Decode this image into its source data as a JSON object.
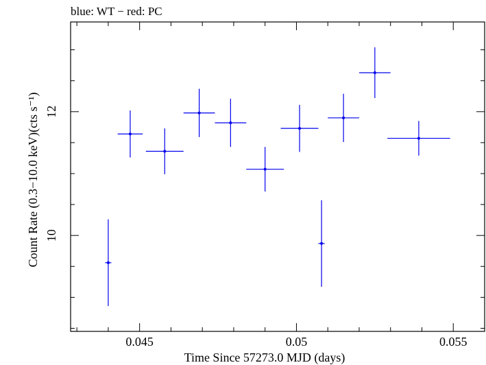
{
  "chart_data": {
    "type": "scatter",
    "title": "blue: WT − red: PC",
    "xlabel": "Time Since 57273.0 MJD (days)",
    "ylabel": "Count Rate (0.3−10.0 keV)(cts s⁻¹)",
    "xlim": [
      0.0428,
      0.056
    ],
    "ylim": [
      8.45,
      13.45
    ],
    "x_major_ticks": [
      0.045,
      0.05,
      0.055
    ],
    "x_tick_labels": [
      "0.045",
      "0.05",
      "0.055"
    ],
    "y_major_ticks": [
      10,
      12
    ],
    "y_tick_labels": [
      "10",
      "12"
    ],
    "grid": false,
    "series": [
      {
        "color": "#0000ee",
        "points": [
          {
            "x": 0.044,
            "xerr": 0.0001,
            "y": 9.56,
            "yerr": 0.7
          },
          {
            "x": 0.0447,
            "xerr": 0.0004,
            "y": 11.64,
            "yerr": 0.38
          },
          {
            "x": 0.0458,
            "xerr": 0.0006,
            "y": 11.36,
            "yerr": 0.37
          },
          {
            "x": 0.0469,
            "xerr": 0.0005,
            "y": 11.98,
            "yerr": 0.39
          },
          {
            "x": 0.0479,
            "xerr": 0.0005,
            "y": 11.82,
            "yerr": 0.39
          },
          {
            "x": 0.049,
            "xerr": 0.0006,
            "y": 11.07,
            "yerr": 0.36
          },
          {
            "x": 0.0501,
            "xerr": 0.0006,
            "y": 11.73,
            "yerr": 0.38
          },
          {
            "x": 0.0508,
            "xerr": 0.0001,
            "y": 9.87,
            "yerr": 0.7
          },
          {
            "x": 0.0515,
            "xerr": 0.0005,
            "y": 11.9,
            "yerr": 0.39
          },
          {
            "x": 0.0525,
            "xerr": 0.0005,
            "y": 12.63,
            "yerr": 0.41
          },
          {
            "x": 0.0539,
            "xerr": 0.001,
            "y": 11.57,
            "yerr": 0.28
          }
        ]
      }
    ]
  }
}
